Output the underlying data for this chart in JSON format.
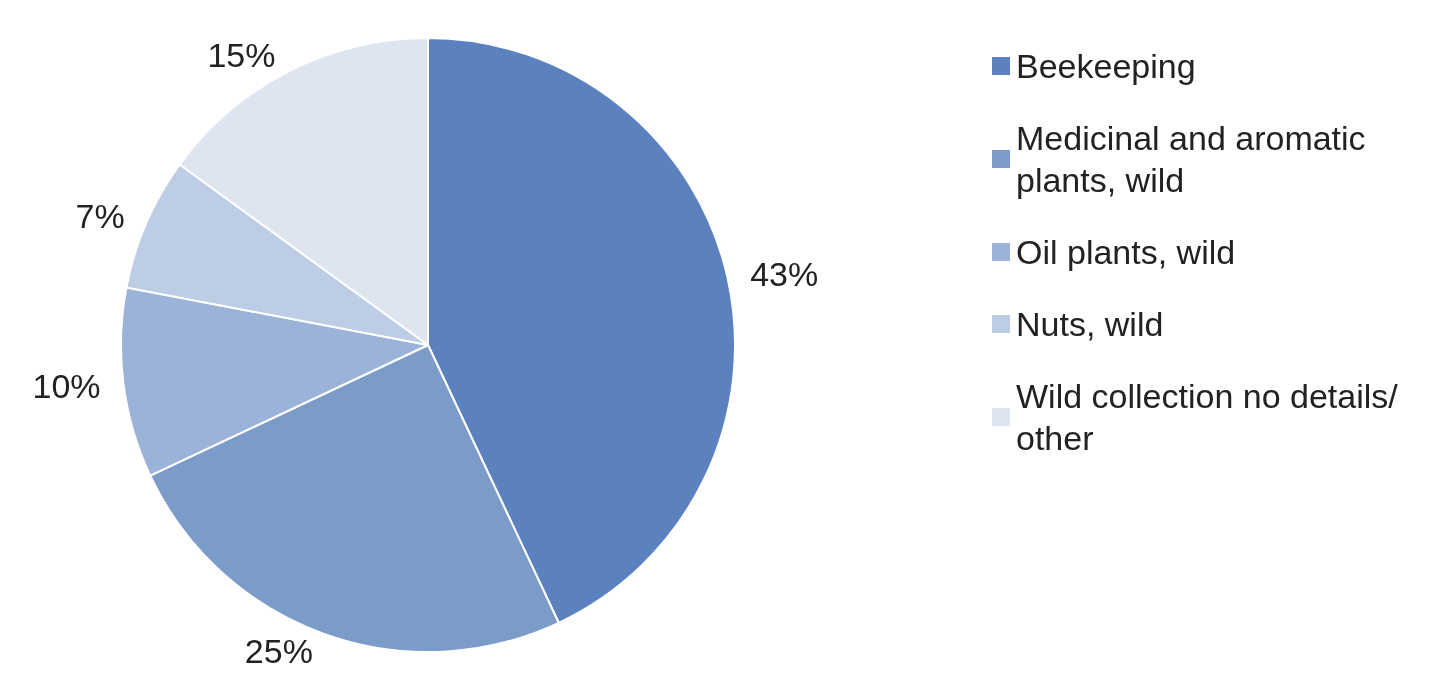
{
  "chart_data": {
    "type": "pie",
    "categories": [
      "Beekeeping",
      "Medicinal and aromatic plants, wild",
      "Oil plants, wild",
      "Nuts, wild",
      "Wild collection no details/other"
    ],
    "values": [
      43,
      25,
      10,
      7,
      15
    ],
    "value_labels": [
      "43%",
      "25%",
      "10%",
      "7%",
      "15%"
    ],
    "colors": [
      "#5b82be",
      "#7b9cc9",
      "#9bb3d8",
      "#bccde5",
      "#dde5f1"
    ],
    "legend": "right"
  }
}
